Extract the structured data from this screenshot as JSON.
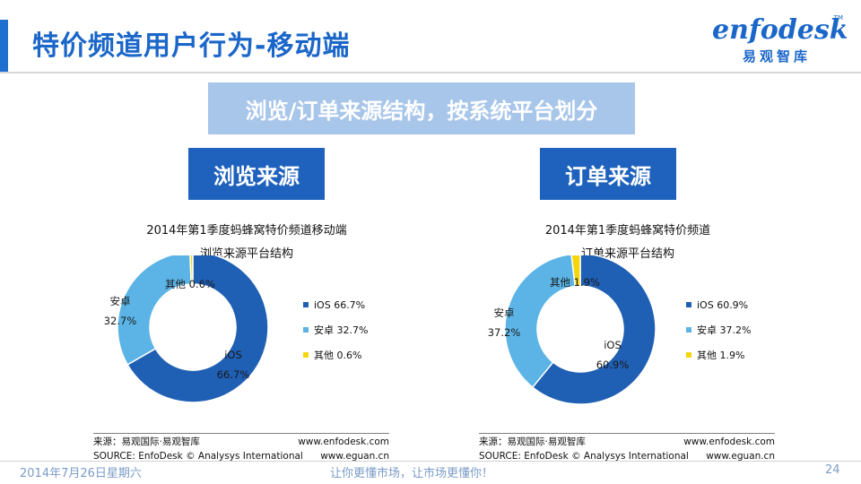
{
  "header": {
    "title": "特价频道用户行为-移动端",
    "logo_word": "enfodesk",
    "logo_tm": "TM",
    "logo_cn": "易观智库"
  },
  "banner": "浏览/订单来源结构，按系统平台划分",
  "sections": {
    "left": "浏览来源",
    "right": "订单来源"
  },
  "chart_data": [
    {
      "type": "pie",
      "title": "2014年第1季度蚂蜂窝特价频道移动端",
      "subtitle": "浏览来源平台结构",
      "categories": [
        "iOS",
        "安卓",
        "其他"
      ],
      "values": [
        66.7,
        32.7,
        0.6
      ],
      "value_labels": [
        "66.7%",
        "32.7%",
        "0.6%"
      ],
      "legend": [
        "iOS 66.7%",
        "安卓 32.7%",
        "其他 0.6%"
      ],
      "colors": [
        "#1f5fb4",
        "#5bb4e5",
        "#f5d60c"
      ],
      "donut": true,
      "legend_position": "right"
    },
    {
      "type": "pie",
      "title": "2014年第1季度蚂蜂窝特价频道",
      "subtitle": "订单来源平台结构",
      "categories": [
        "iOS",
        "安卓",
        "其他"
      ],
      "values": [
        60.9,
        37.2,
        1.9
      ],
      "value_labels": [
        "60.9%",
        "37.2%",
        "1.9%"
      ],
      "legend": [
        "iOS 60.9%",
        "安卓 37.2%",
        "其他 1.9%"
      ],
      "colors": [
        "#1f5fb4",
        "#5bb4e5",
        "#f5d60c"
      ],
      "donut": true,
      "legend_position": "right"
    }
  ],
  "source_notes": {
    "left": {
      "line1_left": "来源：易观国际·易观智库",
      "line1_right": "www.enfodesk.com",
      "line2_left": "SOURCE: EnfoDesk © Analysys International",
      "line2_right": "www.eguan.cn"
    },
    "right": {
      "line1_left": "来源：易观国际·易观智库",
      "line1_right": "www.enfodesk.com",
      "line2_left": "SOURCE: EnfoDesk © Analysys International",
      "line2_right": "www.eguan.cn"
    }
  },
  "footer": {
    "date": "2014年7月26日星期六",
    "slogan": "让你更懂市场，让市场更懂你！",
    "page_number": "24"
  }
}
